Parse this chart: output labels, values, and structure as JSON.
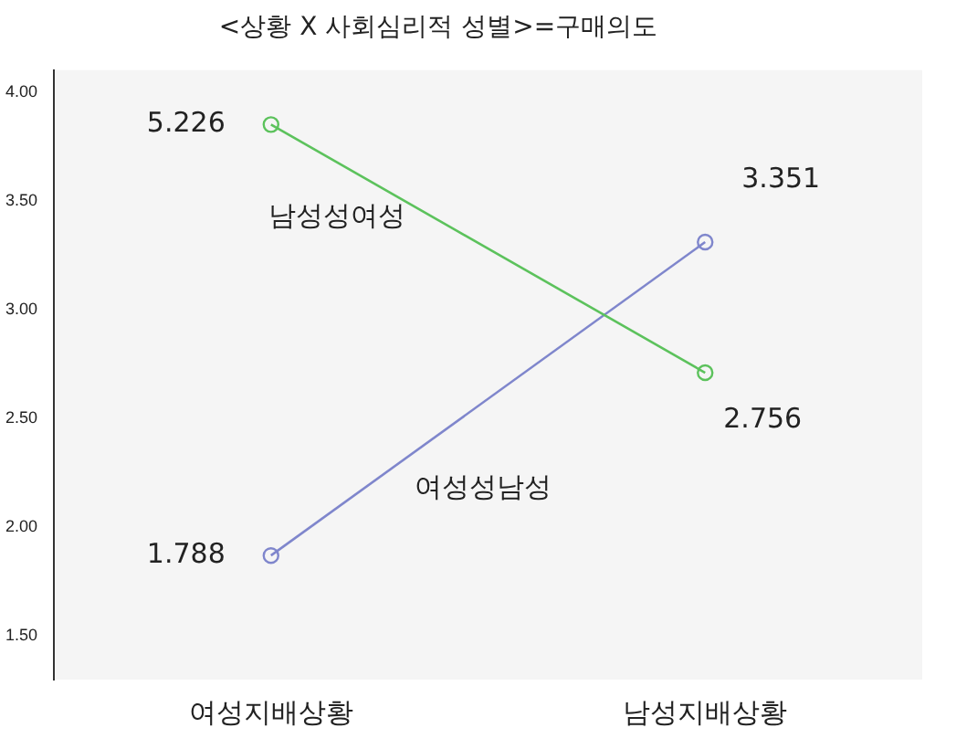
{
  "chart_data": {
    "type": "line",
    "title": "<상황 X 사회심리적 성별>=구매의도",
    "categories": [
      "여성지배상황",
      "남성지배상황"
    ],
    "series": [
      {
        "name": "남성성여성",
        "color": "#5cc25c",
        "values": [
          3.85,
          2.71
        ]
      },
      {
        "name": "여성성남성",
        "color": "#7f86cc",
        "values": [
          1.87,
          3.31
        ]
      }
    ],
    "ylim": [
      1.3,
      4.1
    ],
    "yticks": [
      {
        "value": 1.5,
        "label": "1.50"
      },
      {
        "value": 2,
        "label": "2.00"
      },
      {
        "value": 2.5,
        "label": "2.50"
      },
      {
        "value": 3,
        "label": "3.00"
      },
      {
        "value": 3.5,
        "label": "3.50"
      },
      {
        "value": 4,
        "label": "4.00"
      }
    ],
    "grid": false,
    "legend": false,
    "marker": "circle",
    "line_style": "solid",
    "annotations": [
      {
        "text": "5.226",
        "x": "여성지배상황",
        "y": 3.85
      },
      {
        "text": "1.788",
        "x": "여성지배상황",
        "y": 1.87
      },
      {
        "text": "3.351",
        "x": "남성지배상황",
        "y": 3.31
      },
      {
        "text": "2.756",
        "x": "남성지배상황",
        "y": 2.71
      }
    ]
  }
}
